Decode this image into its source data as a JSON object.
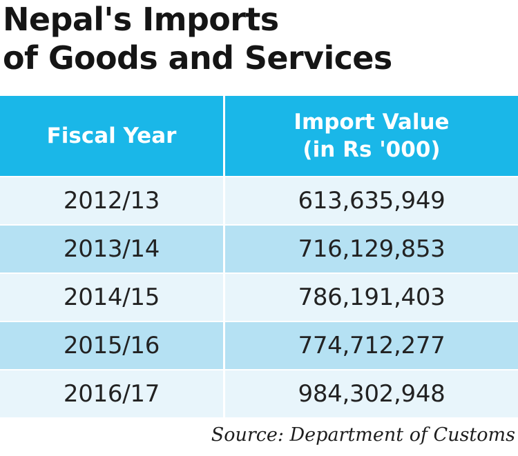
{
  "title_line1": "Nepal's Imports",
  "title_line2": "of Goods and Services",
  "header": {
    "year_label": "Fiscal Year",
    "value_label_line1": "Import Value",
    "value_label_line2": "(in Rs '000)"
  },
  "source": "Source: Department of Customs",
  "colors": {
    "header_bg": "#1ab7e8",
    "row_light": "#e8f5fb",
    "row_dark": "#b5e1f3"
  },
  "chart_data": {
    "type": "table",
    "title": "Nepal's Imports of Goods and Services",
    "columns": [
      "Fiscal Year",
      "Import Value (in Rs '000)"
    ],
    "rows": [
      {
        "year": "2012/13",
        "value": "613,635,949"
      },
      {
        "year": "2013/14",
        "value": "716,129,853"
      },
      {
        "year": "2014/15",
        "value": "786,191,403"
      },
      {
        "year": "2015/16",
        "value": "774,712,277"
      },
      {
        "year": "2016/17",
        "value": "984,302,948"
      }
    ]
  }
}
